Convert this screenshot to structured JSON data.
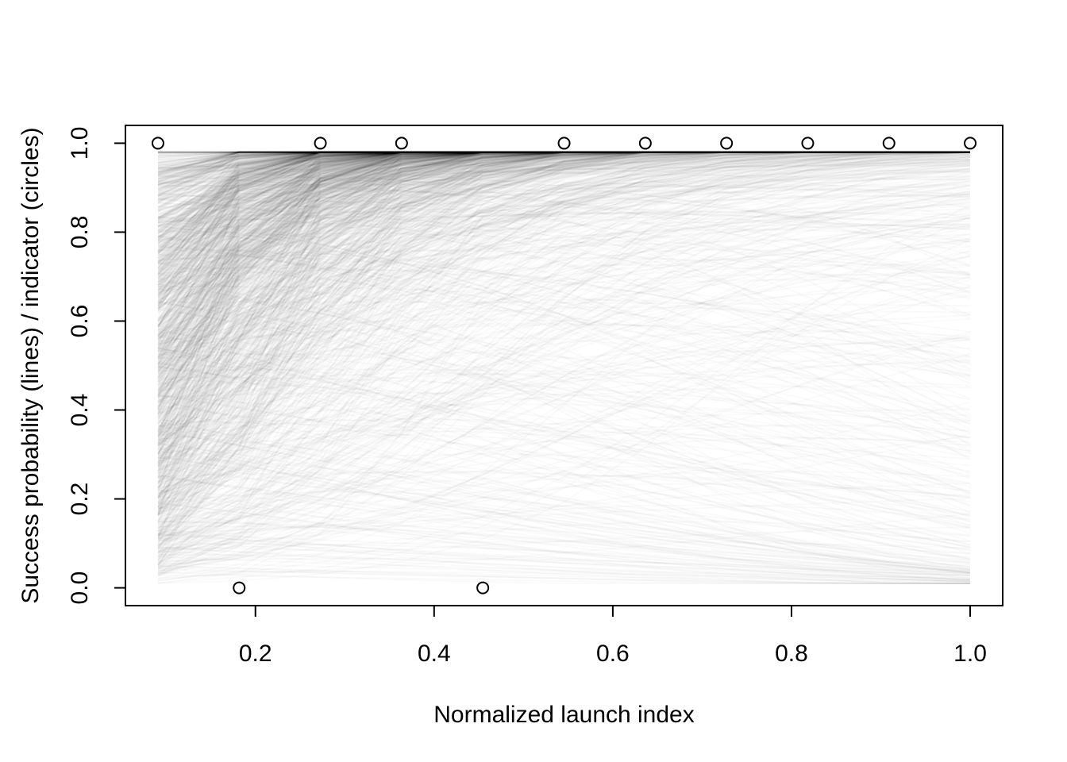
{
  "chart_data": {
    "type": "line",
    "title": "",
    "xlabel": "Normalized launch index",
    "ylabel": "Success probability (lines) / indicator (circles)",
    "xlim": [
      0.0545,
      1.0364
    ],
    "ylim": [
      -0.04,
      1.04
    ],
    "grid": false,
    "legend": "none",
    "x_ticks": [
      0.2,
      0.4,
      0.6,
      0.8,
      1.0
    ],
    "x_tick_labels": [
      "0.2",
      "0.4",
      "0.6",
      "0.8",
      "1.0"
    ],
    "y_ticks": [
      0.0,
      0.2,
      0.4,
      0.6,
      0.8,
      1.0
    ],
    "y_tick_labels": [
      "0.0",
      "0.2",
      "0.4",
      "0.6",
      "0.8",
      "1.0"
    ],
    "line_color": "#000000",
    "line_opacity": 0.02,
    "line_grid_x": [
      0.0909,
      0.1818,
      0.2727,
      0.3636,
      0.4545,
      0.5455,
      0.6364,
      0.7273,
      0.8182,
      0.9091,
      1.0
    ],
    "line_count": 1500,
    "line_start_range": [
      0.01,
      0.98
    ],
    "line_end_range": [
      0.22,
      1.0
    ],
    "points": {
      "name": "indicator",
      "marker": "open-circle",
      "x": [
        0.0909,
        0.1818,
        0.2727,
        0.3636,
        0.4545,
        0.5455,
        0.6364,
        0.7273,
        0.8182,
        0.9091,
        1.0
      ],
      "y": [
        1,
        0,
        1,
        1,
        0,
        1,
        1,
        1,
        1,
        1,
        1
      ]
    }
  }
}
